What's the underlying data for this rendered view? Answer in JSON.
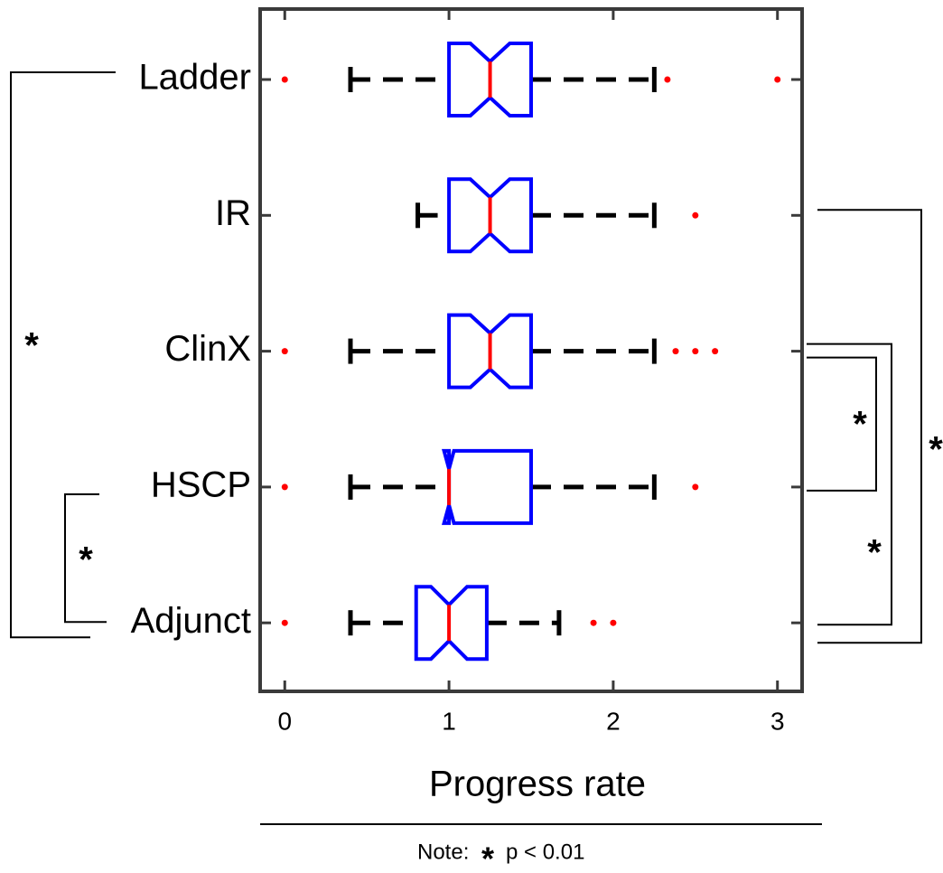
{
  "chart_data": {
    "type": "boxplot",
    "orientation": "horizontal",
    "xlabel": "Progress rate",
    "categories": [
      "Ladder",
      "IR",
      "ClinX",
      "HSCP",
      "Adjunct"
    ],
    "xlim": [
      -0.15,
      3.15
    ],
    "xticks": [
      0,
      1,
      2,
      3
    ],
    "box_color": "#0000ff",
    "median_color": "#ff0000",
    "whisker_color": "#000000",
    "flier_color": "#ff0000",
    "boxes": [
      {
        "whislo": 0.4,
        "q1": 1.0,
        "notch_lo": 1.13,
        "med": 1.25,
        "notch_hi": 1.37,
        "q3": 1.5,
        "whishi": 2.25,
        "fliers": [
          0,
          2.33,
          3.0
        ]
      },
      {
        "whislo": 0.81,
        "q1": 1.0,
        "notch_lo": 1.13,
        "med": 1.25,
        "notch_hi": 1.37,
        "q3": 1.5,
        "whishi": 2.25,
        "fliers": [
          2.5
        ]
      },
      {
        "whislo": 0.4,
        "q1": 1.0,
        "notch_lo": 1.13,
        "med": 1.25,
        "notch_hi": 1.37,
        "q3": 1.5,
        "whishi": 2.25,
        "fliers": [
          0,
          2.38,
          2.5,
          2.62
        ]
      },
      {
        "whislo": 0.4,
        "q1": 1.0,
        "notch_lo": 0.97,
        "med": 1.0,
        "notch_hi": 1.03,
        "q3": 1.5,
        "whishi": 2.25,
        "fliers": [
          0,
          2.5
        ]
      },
      {
        "whislo": 0.4,
        "q1": 0.8,
        "notch_lo": 0.89,
        "med": 1.0,
        "notch_hi": 1.11,
        "q3": 1.23,
        "whishi": 1.67,
        "fliers": [
          0,
          1.88,
          2.0
        ]
      }
    ],
    "significance": [
      {
        "pair": [
          0,
          4
        ],
        "label": "*"
      },
      {
        "pair": [
          3,
          4
        ],
        "label": "*"
      },
      {
        "pair": [
          1,
          4
        ],
        "label": "*"
      },
      {
        "pair": [
          2,
          3
        ],
        "label": "*"
      },
      {
        "pair": [
          2,
          4
        ],
        "label": "*"
      }
    ],
    "note": {
      "prefix": "Note:",
      "symbol": "*",
      "text": "p < 0.01"
    }
  }
}
